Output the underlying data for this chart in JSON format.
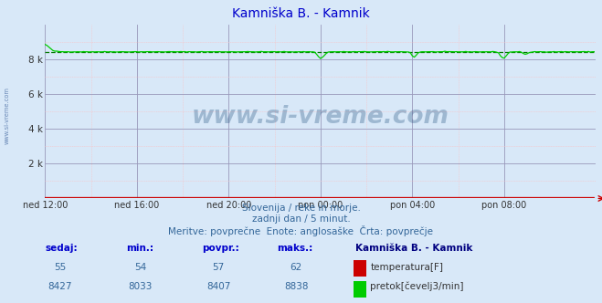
{
  "title": "Kamniška B. - Kamnik",
  "title_color": "#0000cc",
  "bg_color": "#d8e8f8",
  "plot_bg_color": "#d8e8f8",
  "grid_major_color": "#9999bb",
  "grid_minor_color": "#ffbbbb",
  "x_labels": [
    "ned 12:00",
    "ned 16:00",
    "ned 20:00",
    "pon 00:00",
    "pon 04:00",
    "pon 08:00"
  ],
  "x_ticks_idx": [
    0,
    48,
    96,
    144,
    192,
    240
  ],
  "n_points": 288,
  "ylim": [
    0,
    10000
  ],
  "y_ticks": [
    0,
    2000,
    4000,
    6000,
    8000
  ],
  "y_labels": [
    "",
    "2 k",
    "4 k",
    "6 k",
    "8 k"
  ],
  "temp_color": "#cc0000",
  "flow_color": "#00cc00",
  "avg_color": "#007700",
  "flow_avg": 8407,
  "subtitle1": "Slovenija / reke in morje.",
  "subtitle2": "zadnji dan / 5 minut.",
  "subtitle3": "Meritve: povprečne  Enote: anglosaške  Črta: povprečje",
  "subtitle_color": "#336699",
  "watermark": "www.si-vreme.com",
  "watermark_color": "#1a4a7a",
  "side_text": "www.si-vreme.com",
  "legend_title": "Kamniška B. - Kamnik",
  "legend_title_color": "#000080",
  "col_header_color": "#0000cc",
  "col_value_color": "#336699",
  "col_text_color": "#333333",
  "temp_sedaj": 55,
  "temp_min": 54,
  "temp_povpr": 57,
  "temp_maks": 62,
  "flow_sedaj": 8427,
  "flow_min": 8033,
  "flow_povpr": 8407,
  "flow_maks": 8838
}
